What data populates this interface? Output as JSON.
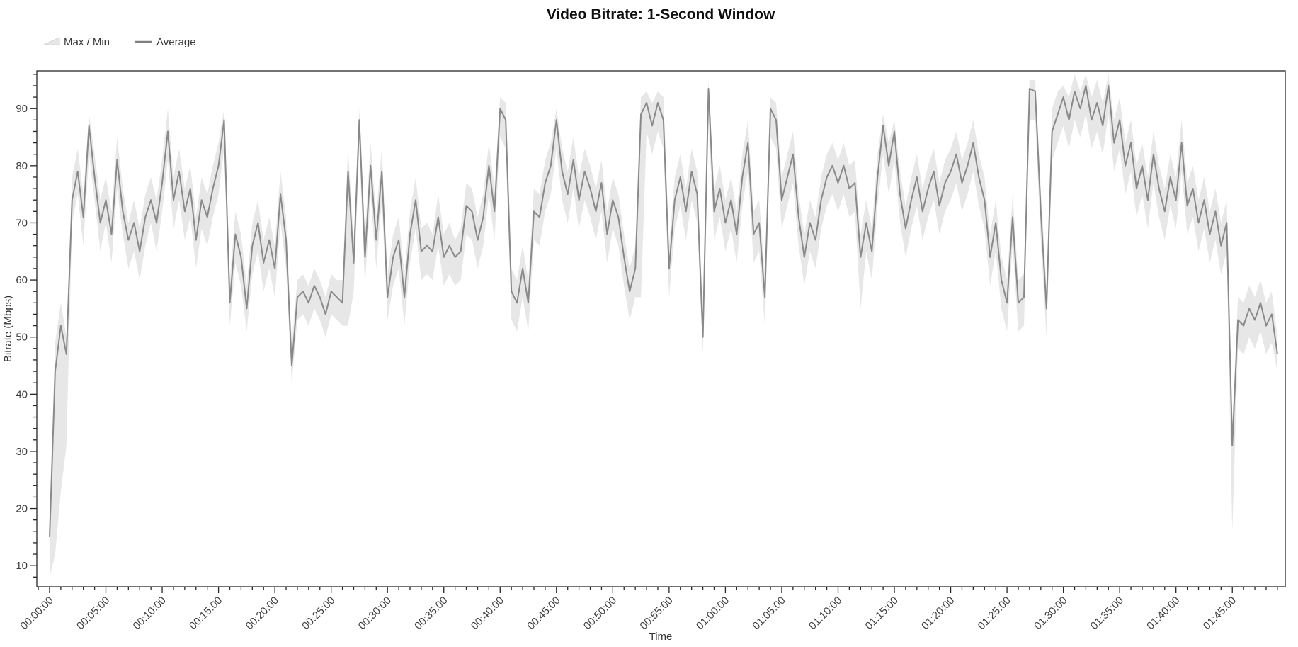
{
  "header": {
    "title": "Video Bitrate: 1-Second Window"
  },
  "legend": {
    "items": [
      {
        "label": "Max / Min",
        "swatch": "band-area-icon"
      },
      {
        "label": "Average",
        "swatch": "line-icon"
      }
    ]
  },
  "colors": {
    "band": "#e7e7e7",
    "band_edge": "#d4d4d4",
    "average_line": "#898989",
    "axis": "#262626",
    "tick_label": "#3f3f3f",
    "title": "#0f0f0f",
    "background": "#ffffff"
  },
  "chart_data": {
    "type": "line",
    "title": "Video Bitrate: 1-Second Window",
    "xlabel": "Time",
    "ylabel": "Bitrate (Mbps)",
    "grid": false,
    "legend_position": "top-left",
    "x_start": "00:00:00",
    "sample_interval_seconds": 30,
    "x_tick_interval_minutes": 5,
    "x_minor_tick_interval_minutes": 1,
    "x_tick_labels": [
      "00:00:00",
      "00:05:00",
      "00:10:00",
      "00:15:00",
      "00:20:00",
      "00:25:00",
      "00:30:00",
      "00:35:00",
      "00:40:00",
      "00:45:00",
      "00:50:00",
      "00:55:00",
      "01:00:00",
      "01:05:00",
      "01:10:00",
      "01:15:00",
      "01:20:00",
      "01:25:00",
      "01:30:00",
      "01:35:00",
      "01:40:00",
      "01:45:00"
    ],
    "y_tick_labels": [
      10,
      20,
      30,
      40,
      50,
      60,
      70,
      80,
      90
    ],
    "y_minor_tick_step": 2,
    "ylim": [
      6.3,
      96.6
    ],
    "xlim_minutes": [
      -1.13,
      109.7
    ],
    "series": [
      {
        "name": "Average",
        "role": "average",
        "color": "#898989",
        "values": [
          15,
          44,
          52,
          47,
          74,
          79,
          71,
          87,
          78,
          70,
          74,
          68,
          81,
          72,
          67,
          70,
          65,
          71,
          74,
          70,
          77,
          86,
          74,
          79,
          72,
          76,
          67,
          74,
          71,
          76,
          80,
          88,
          56,
          68,
          64,
          55,
          66,
          70,
          63,
          67,
          62,
          75,
          67,
          45,
          57,
          58,
          56,
          59,
          57,
          54,
          58,
          57,
          56,
          79,
          63,
          88,
          64,
          80,
          67,
          79,
          57,
          64,
          67,
          57,
          68,
          74,
          65,
          66,
          65,
          71,
          64,
          66,
          64,
          65,
          73,
          72,
          67,
          71,
          80,
          72,
          90,
          88,
          58,
          56,
          62,
          56,
          72,
          71,
          77,
          80,
          88,
          79,
          75,
          81,
          74,
          79,
          76,
          72,
          77,
          68,
          74,
          71,
          64,
          58,
          62,
          89,
          91,
          87,
          91,
          88,
          62,
          74,
          78,
          72,
          79,
          75,
          50,
          93.5,
          72,
          76,
          70,
          74,
          68,
          78,
          84,
          68,
          70,
          57,
          90,
          88,
          74,
          78,
          82,
          71,
          64,
          70,
          67,
          74,
          78,
          80,
          77,
          80,
          76,
          77,
          64,
          70,
          65,
          78,
          87,
          80,
          86,
          75,
          69,
          74,
          78,
          72,
          76,
          79,
          73,
          77,
          79,
          82,
          77,
          80,
          84,
          78,
          74,
          64,
          70,
          60,
          56,
          71,
          56,
          57,
          93.5,
          93,
          72,
          55,
          86,
          89,
          92,
          88,
          93,
          90,
          94,
          88,
          91,
          87,
          94,
          84,
          88,
          80,
          84,
          76,
          80,
          74,
          82,
          76,
          72,
          78,
          74,
          84,
          73,
          76,
          70,
          74,
          68,
          72,
          66,
          70,
          31,
          53,
          52,
          55,
          53,
          56,
          52,
          54,
          47
        ]
      },
      {
        "name": "Max",
        "role": "band-upper",
        "color": "#e7e7e7",
        "values": [
          18,
          49,
          56,
          50,
          78,
          83,
          75,
          89,
          82,
          74,
          78,
          72,
          85,
          76,
          70,
          74,
          69,
          75,
          78,
          74,
          81,
          90,
          78,
          83,
          76,
          80,
          71,
          78,
          75,
          80,
          84,
          90,
          60,
          72,
          68,
          59,
          70,
          74,
          67,
          71,
          66,
          79,
          71,
          49,
          60,
          61,
          59,
          62,
          60,
          57,
          61,
          60,
          60,
          83,
          67,
          90,
          68,
          84,
          71,
          83,
          61,
          68,
          71,
          61,
          72,
          78,
          69,
          70,
          68,
          75,
          68,
          70,
          67,
          69,
          77,
          76,
          71,
          75,
          84,
          76,
          92,
          91,
          62,
          60,
          66,
          60,
          76,
          75,
          81,
          84,
          90,
          83,
          79,
          85,
          78,
          83,
          80,
          76,
          81,
          72,
          78,
          75,
          68,
          62,
          66,
          92,
          93,
          91,
          93,
          92,
          66,
          78,
          82,
          76,
          83,
          79,
          54,
          95,
          76,
          80,
          74,
          78,
          72,
          82,
          88,
          72,
          74,
          61,
          92,
          91,
          78,
          82,
          86,
          75,
          68,
          74,
          71,
          78,
          82,
          84,
          81,
          84,
          80,
          81,
          68,
          74,
          69,
          82,
          89,
          84,
          88,
          79,
          73,
          78,
          82,
          76,
          80,
          83,
          77,
          81,
          83,
          86,
          81,
          84,
          88,
          82,
          78,
          68,
          74,
          64,
          60,
          75,
          60,
          61,
          95,
          95,
          76,
          59,
          90,
          93,
          94,
          92,
          96,
          93,
          96,
          92,
          95,
          91,
          96,
          88,
          92,
          84,
          88,
          80,
          84,
          78,
          86,
          80,
          76,
          82,
          78,
          88,
          77,
          80,
          74,
          78,
          72,
          76,
          70,
          74,
          35,
          57,
          56,
          59,
          57,
          60,
          56,
          58,
          50
        ]
      },
      {
        "name": "Min",
        "role": "band-lower",
        "color": "#e7e7e7",
        "values": [
          8,
          12,
          23,
          31,
          70,
          75,
          66,
          82,
          74,
          65,
          70,
          63,
          76,
          68,
          62,
          65,
          60,
          66,
          70,
          65,
          72,
          81,
          69,
          74,
          67,
          71,
          62,
          69,
          66,
          71,
          75,
          83,
          52,
          63,
          59,
          51,
          61,
          65,
          58,
          62,
          57,
          70,
          62,
          42,
          53,
          54,
          52,
          55,
          53,
          50,
          54,
          53,
          52,
          52,
          58,
          83,
          59,
          75,
          62,
          74,
          53,
          59,
          62,
          52,
          63,
          69,
          60,
          61,
          60,
          66,
          59,
          61,
          59,
          60,
          68,
          67,
          62,
          66,
          75,
          67,
          85,
          83,
          53,
          51,
          57,
          51,
          67,
          66,
          72,
          75,
          83,
          74,
          70,
          76,
          69,
          74,
          71,
          67,
          72,
          63,
          69,
          66,
          59,
          53,
          57,
          57,
          86,
          82,
          86,
          83,
          57,
          69,
          73,
          67,
          74,
          70,
          47,
          88,
          67,
          71,
          65,
          69,
          63,
          73,
          79,
          63,
          65,
          52,
          85,
          83,
          69,
          73,
          77,
          66,
          59,
          65,
          62,
          69,
          73,
          75,
          72,
          75,
          71,
          72,
          55,
          65,
          60,
          73,
          82,
          75,
          81,
          70,
          64,
          69,
          73,
          67,
          71,
          74,
          68,
          72,
          74,
          77,
          72,
          75,
          79,
          73,
          69,
          59,
          65,
          55,
          51,
          66,
          51,
          52,
          88,
          88,
          67,
          50,
          81,
          84,
          87,
          83,
          88,
          85,
          89,
          83,
          86,
          82,
          89,
          79,
          83,
          75,
          79,
          71,
          75,
          69,
          77,
          71,
          67,
          73,
          69,
          79,
          68,
          71,
          65,
          69,
          63,
          67,
          61,
          65,
          16,
          48,
          47,
          50,
          48,
          51,
          47,
          49,
          44
        ]
      }
    ]
  }
}
